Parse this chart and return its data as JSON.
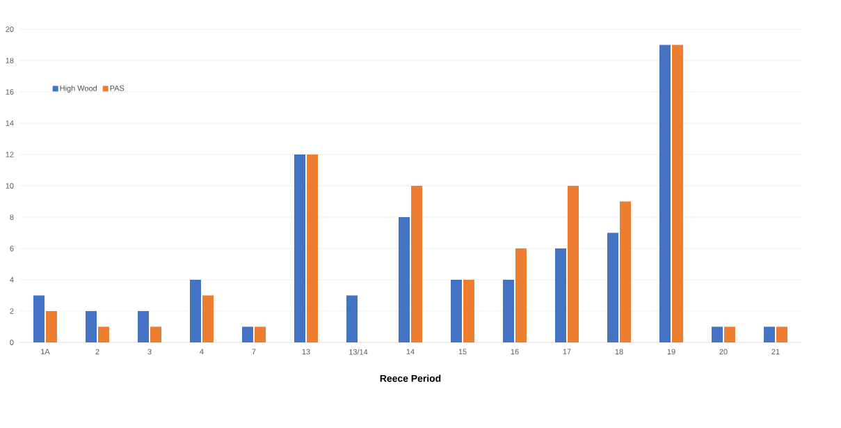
{
  "chart_data": {
    "type": "bar",
    "xlabel": "Reece Period",
    "categories": [
      "1A",
      "2",
      "3",
      "4",
      "7",
      "13",
      "13/14",
      "14",
      "15",
      "16",
      "17",
      "18",
      "19",
      "20",
      "21"
    ],
    "series": [
      {
        "name": "High Wood",
        "color": "#4472c4",
        "values": [
          3,
          2,
          2,
          4,
          1,
          12,
          3,
          8,
          4,
          4,
          6,
          7,
          19,
          1,
          1
        ]
      },
      {
        "name": "PAS",
        "color": "#ed7d31",
        "values": [
          2,
          1,
          1,
          3,
          1,
          12,
          0,
          10,
          4,
          6,
          10,
          9,
          19,
          1,
          1
        ]
      }
    ],
    "ylim": [
      0,
      20
    ],
    "yticks": [
      0,
      2,
      4,
      6,
      8,
      10,
      12,
      14,
      16,
      18,
      20
    ],
    "grid": "y",
    "legend": "top left"
  }
}
